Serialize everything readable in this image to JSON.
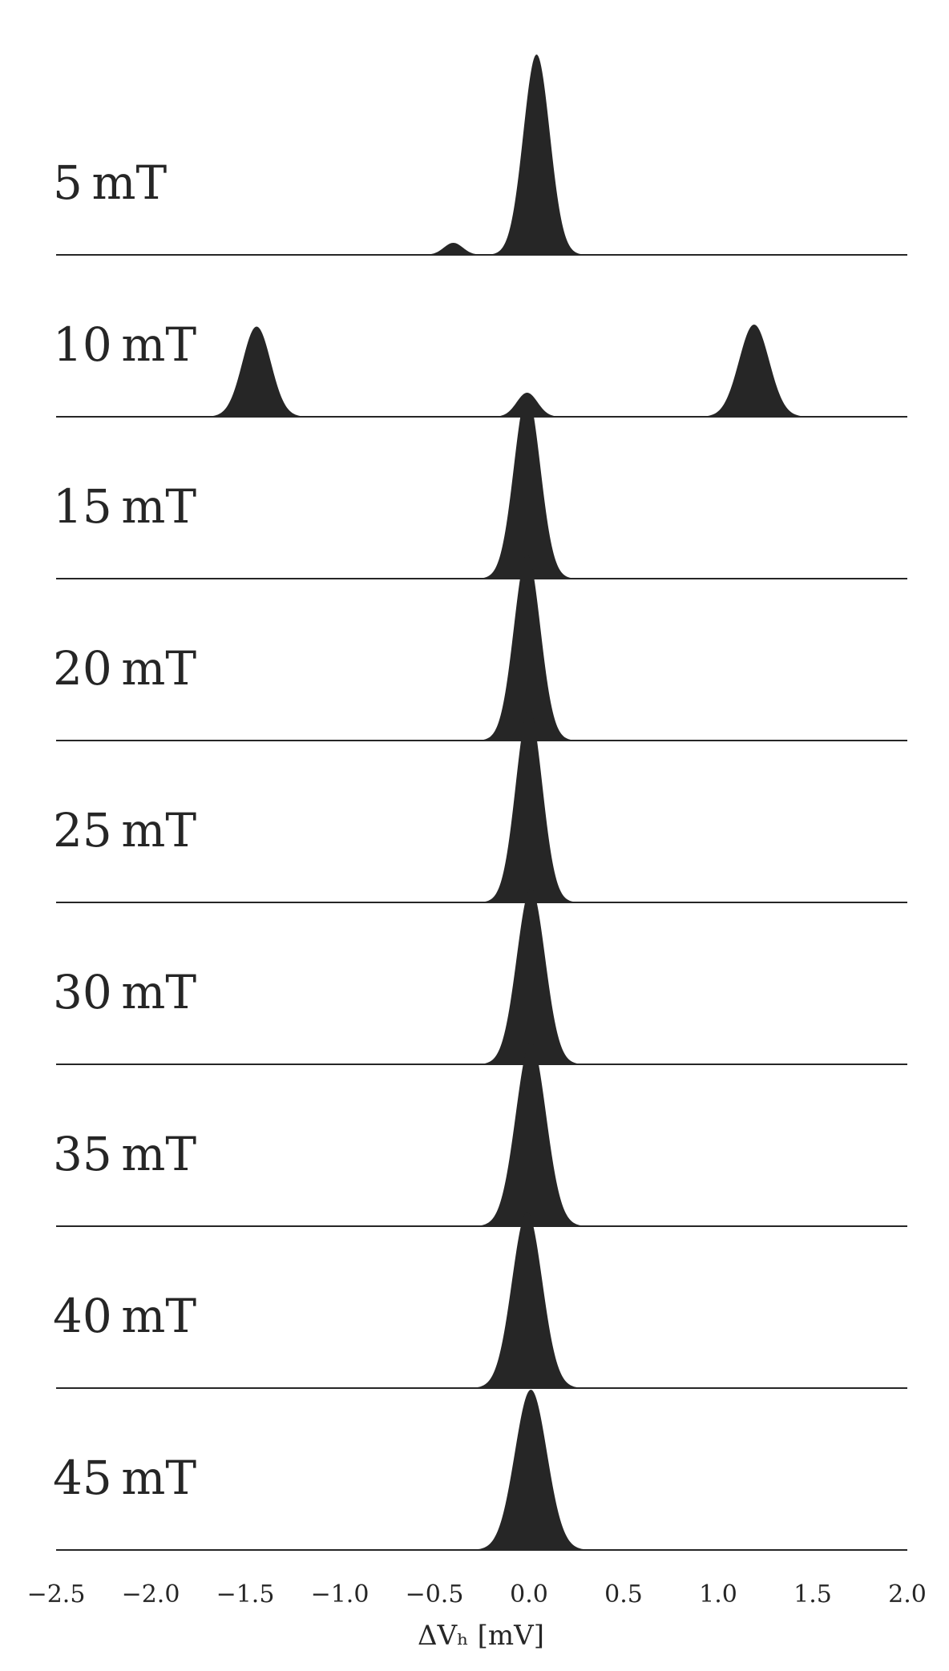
{
  "chart_data": {
    "type": "area",
    "subtype": "ridgeline",
    "xlabel": "ΔVₕ [mV]",
    "xlim": [
      -2.5,
      2.0
    ],
    "xticks": [
      -2.5,
      -2.0,
      -1.5,
      -1.0,
      -0.5,
      0.0,
      0.5,
      1.0,
      1.5,
      2.0
    ],
    "xtick_labels": [
      "−2.5",
      "−2.0",
      "−1.5",
      "−1.0",
      "−0.5",
      "0.0",
      "0.5",
      "1.0",
      "1.5",
      "2.0"
    ],
    "fill_color": "#262626",
    "series": [
      {
        "label": "5 mT",
        "peaks": [
          {
            "center": 0.04,
            "sigma": 0.07,
            "height": 1.0
          },
          {
            "center": -0.4,
            "sigma": 0.05,
            "height": 0.06
          }
        ]
      },
      {
        "label": "10 mT",
        "peaks": [
          {
            "center": -1.44,
            "sigma": 0.075,
            "height": 0.45
          },
          {
            "center": 1.19,
            "sigma": 0.08,
            "height": 0.46
          },
          {
            "center": -0.01,
            "sigma": 0.055,
            "height": 0.12
          }
        ]
      },
      {
        "label": "15 mT",
        "peaks": [
          {
            "center": -0.01,
            "sigma": 0.07,
            "height": 0.92
          }
        ]
      },
      {
        "label": "20 mT",
        "peaks": [
          {
            "center": -0.01,
            "sigma": 0.07,
            "height": 0.93
          }
        ]
      },
      {
        "label": "25 mT",
        "peaks": [
          {
            "center": 0.0,
            "sigma": 0.07,
            "height": 0.97
          }
        ]
      },
      {
        "label": "30 mT",
        "peaks": [
          {
            "center": 0.01,
            "sigma": 0.075,
            "height": 0.88
          }
        ]
      },
      {
        "label": "35 mT",
        "peaks": [
          {
            "center": 0.01,
            "sigma": 0.08,
            "height": 0.92
          }
        ]
      },
      {
        "label": "40 mT",
        "peaks": [
          {
            "center": -0.01,
            "sigma": 0.08,
            "height": 0.88
          }
        ]
      },
      {
        "label": "45 mT",
        "peaks": [
          {
            "center": 0.01,
            "sigma": 0.085,
            "height": 0.8
          }
        ]
      }
    ]
  }
}
